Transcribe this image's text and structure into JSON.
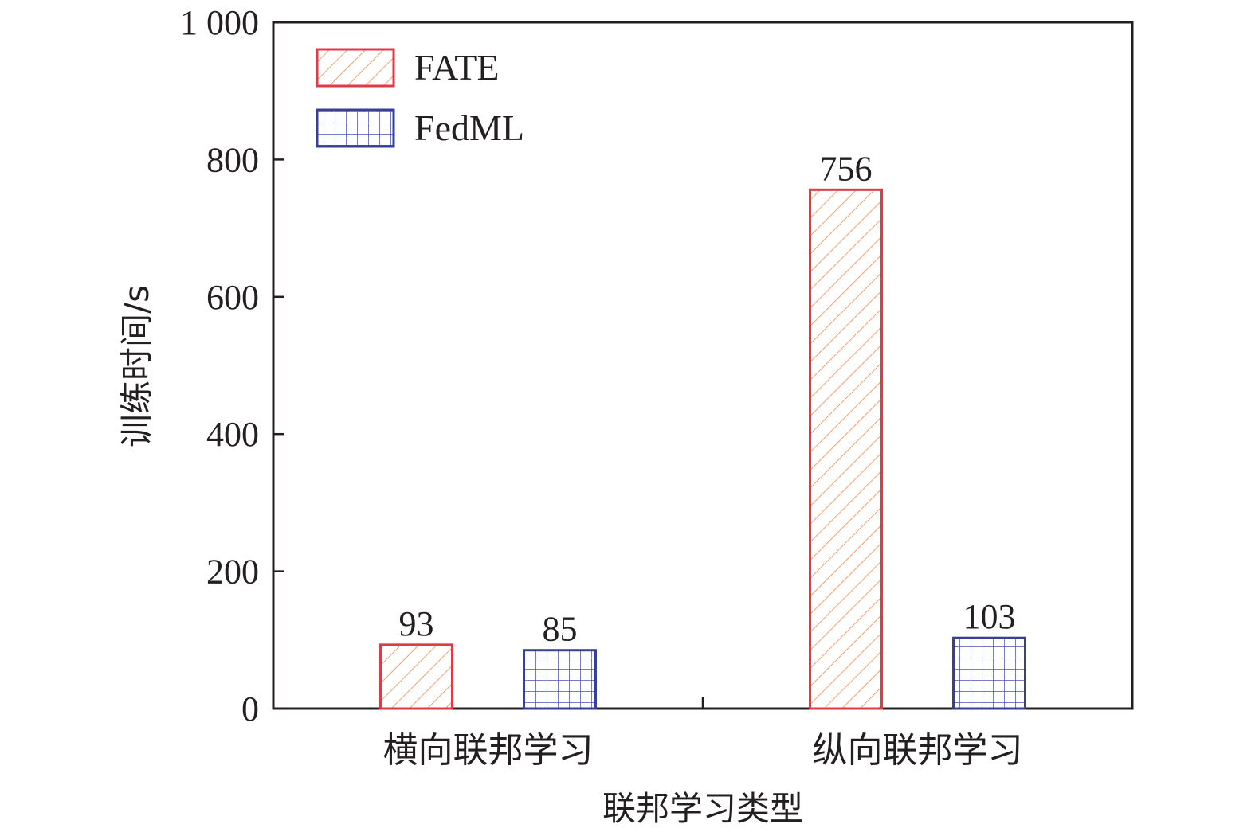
{
  "chart_data": {
    "type": "bar",
    "xlabel": "联邦学习类型",
    "ylabel": "训练时间/s",
    "ylim": [
      0,
      1000
    ],
    "yticks": [
      0,
      200,
      400,
      600,
      800,
      1000
    ],
    "ytick_labels": [
      "0",
      "200",
      "400",
      "600",
      "800",
      "1 000"
    ],
    "categories": [
      "横向联邦学习",
      "纵向联邦学习"
    ],
    "series": [
      {
        "name": "FATE",
        "values": [
          93,
          756
        ],
        "color": "#e03a44",
        "pattern": "diagonal-hatch",
        "pattern_color": "#f0a070"
      },
      {
        "name": "FedML",
        "values": [
          85,
          103
        ],
        "color": "#3a3f96",
        "pattern": "grid-hatch",
        "pattern_color": "#4a52b0"
      }
    ],
    "data_labels": [
      [
        "93",
        "756"
      ],
      [
        "85",
        "103"
      ]
    ],
    "legend_position": "top-left",
    "grid": false
  }
}
